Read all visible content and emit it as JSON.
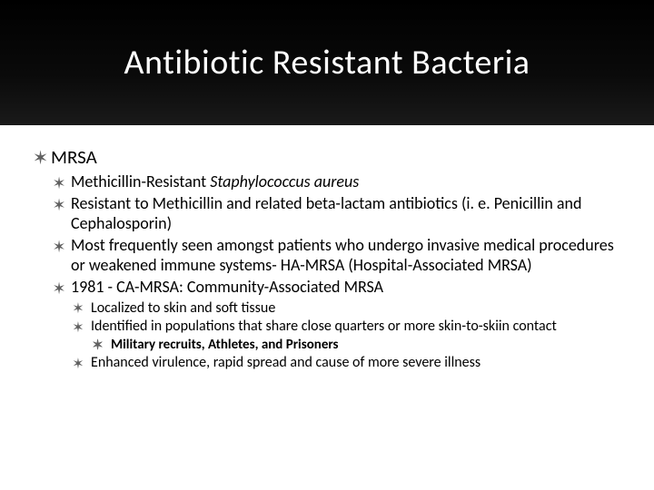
{
  "slide": {
    "title": "Antibiotic Resistant Bacteria",
    "header_bg_top": "#000000",
    "header_bg_bottom": "#1a1a1a",
    "title_color": "#ffffff",
    "title_fontsize": 38,
    "body_bg": "#ffffff",
    "text_color": "#000000",
    "bullet_color": "#606060",
    "bullet_glyph": "✶",
    "l1_fontsize": 21,
    "l2_fontsize": 18,
    "l3_fontsize": 16,
    "l4_fontsize": 15,
    "items": {
      "l1_1": "MRSA",
      "l2_1_prefix": "Methicillin-Resistant ",
      "l2_1_italic": "Staphylococcus aureus",
      "l2_2": "Resistant to Methicillin and related beta-lactam antibiotics  (i. e. Penicillin and Cephalosporin)",
      "l2_3": "Most frequently seen amongst patients who undergo invasive medical procedures or weakened immune systems- HA-MRSA (Hospital-Associated MRSA)",
      "l2_4": "1981 - CA-MRSA: Community-Associated MRSA",
      "l3_1": "Localized to skin and soft tissue",
      "l3_2": "Identified in populations that share close quarters or more skin-to-skiin contact",
      "l4_1": "Military recruits, Athletes, and Prisoners",
      "l3_3": "Enhanced virulence, rapid spread and cause of more severe illness"
    }
  }
}
